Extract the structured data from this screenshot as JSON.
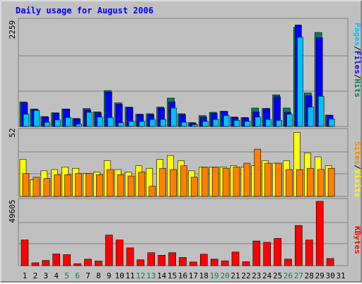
{
  "chart_data": {
    "type": "bar",
    "title": "Daily usage for August 2006",
    "days": [
      "1",
      "2",
      "3",
      "4",
      "5",
      "6",
      "7",
      "8",
      "9",
      "10",
      "11",
      "12",
      "13",
      "14",
      "15",
      "16",
      "17",
      "18",
      "19",
      "20",
      "21",
      "22",
      "23",
      "24",
      "25",
      "26",
      "27",
      "28",
      "29",
      "30",
      "31"
    ],
    "weekend_days": [
      "5",
      "6",
      "12",
      "13",
      "19",
      "20",
      "26",
      "27"
    ],
    "colors": {
      "title": "#0000ff",
      "weekday_label": "#000000",
      "weekend_label": "#00805c",
      "hits": "#00805c",
      "files": "#0000ff",
      "pages": "#00c0ff",
      "visits": "#ffff00",
      "sites": "#ff8000",
      "kbytes": "#ff0000",
      "plot_bg": "#c0c0c0",
      "grid": "#808080"
    },
    "top_panel": {
      "ymax": 2259,
      "ymax_label": "2259",
      "legend": [
        {
          "label": "Pages",
          "color": "#00c0ff"
        },
        {
          "label": "/",
          "color": "#000000"
        },
        {
          "label": "Files",
          "color": "#0000ff"
        },
        {
          "label": "/",
          "color": "#000000"
        },
        {
          "label": "Hits",
          "color": "#00805c"
        }
      ],
      "series": [
        {
          "name": "Hits",
          "values": [
            520,
            370,
            210,
            290,
            370,
            170,
            380,
            310,
            760,
            500,
            410,
            260,
            270,
            410,
            600,
            270,
            80,
            230,
            300,
            320,
            200,
            190,
            390,
            380,
            670,
            390,
            2100,
            710,
            1990,
            240,
            0
          ]
        },
        {
          "name": "Files",
          "values": [
            500,
            360,
            200,
            280,
            370,
            160,
            350,
            290,
            730,
            470,
            400,
            250,
            250,
            390,
            520,
            250,
            70,
            200,
            280,
            320,
            190,
            180,
            310,
            380,
            630,
            300,
            2150,
            650,
            1880,
            230,
            0
          ]
        },
        {
          "name": "Pages",
          "values": [
            260,
            340,
            90,
            140,
            190,
            50,
            300,
            200,
            190,
            80,
            110,
            110,
            150,
            150,
            390,
            90,
            40,
            110,
            150,
            230,
            130,
            110,
            200,
            150,
            130,
            260,
            1890,
            410,
            640,
            160,
            0
          ]
        }
      ]
    },
    "middle_panel": {
      "ymax": 52,
      "ymax_label": "52",
      "legend": [
        {
          "label": "Sites",
          "color": "#ff8000"
        },
        {
          "label": "/",
          "color": "#000000"
        },
        {
          "label": "Visits",
          "color": "#ffff00"
        }
      ],
      "series": [
        {
          "name": "Visits",
          "values": [
            29,
            13,
            20,
            21,
            23,
            22,
            18,
            19,
            28,
            21,
            19,
            24,
            22,
            29,
            32,
            28,
            20,
            23,
            23,
            23,
            24,
            23,
            24,
            28,
            26,
            28,
            50,
            34,
            31,
            24,
            0
          ]
        },
        {
          "name": "Sites",
          "values": [
            18,
            15,
            14,
            17,
            17,
            18,
            18,
            17,
            21,
            17,
            16,
            19,
            8,
            22,
            21,
            24,
            15,
            23,
            23,
            22,
            23,
            26,
            37,
            26,
            26,
            21,
            21,
            22,
            21,
            22,
            0
          ]
        }
      ]
    },
    "bottom_panel": {
      "ymax": 49605,
      "ymax_label": "49605",
      "legend": [
        {
          "label": "KBytes",
          "color": "#ff0000"
        }
      ],
      "series": [
        {
          "name": "KBytes",
          "values": [
            19800,
            2200,
            4000,
            9000,
            8500,
            1500,
            5000,
            3500,
            23600,
            19800,
            13700,
            4500,
            10000,
            8000,
            10000,
            6300,
            2800,
            8800,
            5000,
            3700,
            10500,
            3000,
            19000,
            18000,
            21000,
            5000,
            31000,
            19800,
            49605,
            5500,
            0
          ]
        }
      ]
    }
  }
}
